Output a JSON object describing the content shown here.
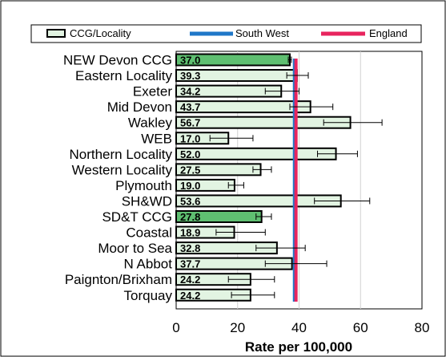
{
  "chart_data": {
    "type": "bar",
    "orientation": "horizontal",
    "categories": [
      "NEW Devon CCG",
      "Eastern Locality",
      "Exeter",
      "Mid Devon",
      "Wakley",
      "WEB",
      "Northern Locality",
      "Western Locality",
      "Plymouth",
      "SH&WD",
      "SD&T CCG",
      "Coastal",
      "Moor to Sea",
      "N Abbot",
      "Paignton/Brixham",
      "Torquay"
    ],
    "value_labels": [
      "37.0",
      "39.3",
      "34.2",
      "43.7",
      "56.7",
      "17.0",
      "52.0",
      "27.5",
      "19.0",
      "53.6",
      "27.8",
      "18.9",
      "32.8",
      "37.7",
      "24.2",
      "24.2"
    ],
    "series": [
      {
        "name": "CCG/Locality",
        "values": [
          37.0,
          39.3,
          34.2,
          43.7,
          56.7,
          17.0,
          52.0,
          27.5,
          19.0,
          53.6,
          27.8,
          18.9,
          32.8,
          37.7,
          24.2,
          24.2
        ],
        "error_low": [
          36.5,
          36,
          29,
          37,
          48,
          11,
          46,
          25,
          17,
          45,
          26,
          13,
          26,
          29,
          17,
          18
        ],
        "error_high": [
          37.5,
          43,
          40,
          51,
          67,
          25,
          59,
          31,
          22,
          63,
          31,
          29,
          42,
          49,
          32,
          32
        ]
      }
    ],
    "highlighted": [
      "NEW Devon CCG",
      "SD&T CCG"
    ],
    "reference_lines": [
      {
        "name": "South West",
        "value": 38.5,
        "color": "#1f77c8"
      },
      {
        "name": "England",
        "value": 39.0,
        "color": "#e8245e"
      }
    ],
    "colors": {
      "bar": "#e2f4e2",
      "bar_highlight": "#5fbf71",
      "bar_stroke": "#000000"
    },
    "xlabel": "Rate per 100,000",
    "xlim": [
      0,
      80
    ],
    "xticks": [
      0,
      20,
      40,
      60,
      80
    ],
    "grid": "vertical",
    "legend_position": "top"
  }
}
